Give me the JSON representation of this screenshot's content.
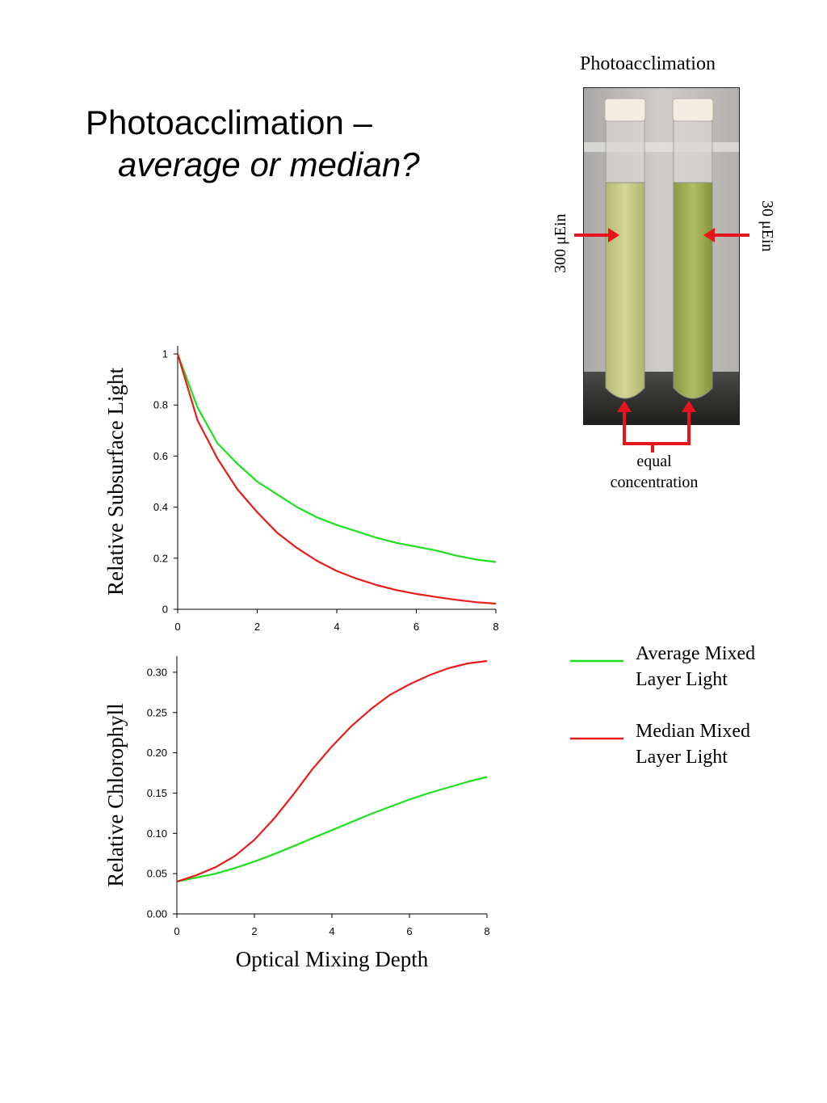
{
  "title": {
    "line1": "Photoacclimation –",
    "line2": "average or median?"
  },
  "photo": {
    "caption": "Photoacclimation",
    "left_label": "300 μEin",
    "right_label": "30 μEin",
    "bottom_label_1": "equal",
    "bottom_label_2": "concentration",
    "arrow_color": "#e8141c",
    "liquid_left_color": "#c7cc86",
    "liquid_right_color": "#a4b257"
  },
  "legend": [
    {
      "label_1": "Average Mixed",
      "label_2": "Layer Light",
      "color": "#1ee01e"
    },
    {
      "label_1": "Median Mixed",
      "label_2": "Layer Light",
      "color": "#e81c1c"
    }
  ],
  "chart_data": [
    {
      "type": "line",
      "title": "",
      "xlabel": "",
      "ylabel": "Relative Subsurface Light",
      "xlim": [
        0,
        8
      ],
      "ylim": [
        0,
        1
      ],
      "xticks": [
        "0",
        "2",
        "4",
        "6",
        "8"
      ],
      "yticks": [
        "0",
        "0.2",
        "0.4",
        "0.6",
        "0.8",
        "1"
      ],
      "grid": false,
      "x": [
        0,
        0.5,
        1,
        1.5,
        2,
        2.5,
        3,
        3.5,
        4,
        4.5,
        5,
        5.5,
        6,
        6.5,
        7,
        7.5,
        8
      ],
      "series": [
        {
          "name": "Average Mixed Layer Light",
          "color": "#1ee01e",
          "values": [
            1.0,
            0.79,
            0.65,
            0.57,
            0.5,
            0.45,
            0.4,
            0.36,
            0.33,
            0.305,
            0.28,
            0.26,
            0.245,
            0.23,
            0.21,
            0.195,
            0.185
          ]
        },
        {
          "name": "Median Mixed Layer Light",
          "color": "#e81c1c",
          "values": [
            1.0,
            0.74,
            0.59,
            0.47,
            0.38,
            0.3,
            0.24,
            0.19,
            0.15,
            0.12,
            0.095,
            0.075,
            0.06,
            0.048,
            0.037,
            0.028,
            0.022
          ]
        }
      ]
    },
    {
      "type": "line",
      "title": "",
      "xlabel": "Optical Mixing Depth",
      "ylabel": "Relative Chlorophyll",
      "xlim": [
        0,
        8
      ],
      "ylim": [
        0,
        0.32
      ],
      "xticks": [
        "0",
        "2",
        "4",
        "6",
        "8"
      ],
      "yticks": [
        "0.00",
        "0.05",
        "0.10",
        "0.15",
        "0.20",
        "0.25",
        "0.30"
      ],
      "grid": false,
      "x": [
        0,
        0.5,
        1,
        1.5,
        2,
        2.5,
        3,
        3.5,
        4,
        4.5,
        5,
        5.5,
        6,
        6.5,
        7,
        7.5,
        8
      ],
      "series": [
        {
          "name": "Average Mixed Layer Light",
          "color": "#1ee01e",
          "values": [
            0.04,
            0.045,
            0.05,
            0.057,
            0.065,
            0.074,
            0.084,
            0.094,
            0.104,
            0.114,
            0.124,
            0.133,
            0.142,
            0.15,
            0.157,
            0.164,
            0.17
          ]
        },
        {
          "name": "Median Mixed Layer Light",
          "color": "#e81c1c",
          "values": [
            0.04,
            0.048,
            0.058,
            0.072,
            0.092,
            0.118,
            0.148,
            0.18,
            0.208,
            0.233,
            0.254,
            0.272,
            0.285,
            0.296,
            0.305,
            0.311,
            0.314
          ]
        }
      ]
    }
  ]
}
